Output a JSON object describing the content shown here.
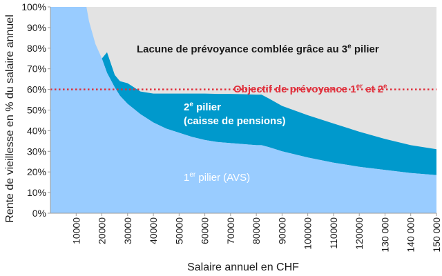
{
  "chart_data": {
    "type": "area",
    "xlabel": "Salaire annuel en CHF",
    "ylabel": "Rente de vieillesse en % du salaire annuel",
    "xlim": [
      0,
      150000
    ],
    "ylim": [
      0,
      100
    ],
    "x_ticks": [
      {
        "value": 10000,
        "label": "10000"
      },
      {
        "value": 20000,
        "label": "20000"
      },
      {
        "value": 30000,
        "label": "30000"
      },
      {
        "value": 40000,
        "label": "40000"
      },
      {
        "value": 50000,
        "label": "50000"
      },
      {
        "value": 60000,
        "label": "60000"
      },
      {
        "value": 70000,
        "label": "70000"
      },
      {
        "value": 80000,
        "label": "80000"
      },
      {
        "value": 90000,
        "label": "90000"
      },
      {
        "value": 100000,
        "label": "100000"
      },
      {
        "value": 110000,
        "label": "110000"
      },
      {
        "value": 120000,
        "label": "120000"
      },
      {
        "value": 130000,
        "label": "130 000"
      },
      {
        "value": 140000,
        "label": "140 000"
      },
      {
        "value": 150000,
        "label": "150 000"
      }
    ],
    "y_ticks": [
      {
        "value": 0,
        "label": "0%"
      },
      {
        "value": 10,
        "label": "10%"
      },
      {
        "value": 20,
        "label": "20%"
      },
      {
        "value": 30,
        "label": "30%"
      },
      {
        "value": 40,
        "label": "40%"
      },
      {
        "value": 50,
        "label": "50%"
      },
      {
        "value": 60,
        "label": "60%"
      },
      {
        "value": 70,
        "label": "70%"
      },
      {
        "value": 80,
        "label": "80%"
      },
      {
        "value": 90,
        "label": "90%"
      },
      {
        "value": 100,
        "label": "100%"
      }
    ],
    "x": [
      0,
      2,
      14000,
      15000,
      17500,
      20000,
      22000,
      25000,
      27000,
      30000,
      35000,
      40000,
      45000,
      50000,
      55000,
      60000,
      65000,
      70000,
      75000,
      80000,
      82000,
      85000,
      90000,
      100000,
      110000,
      120000,
      130000,
      140000,
      150000
    ],
    "series": [
      {
        "name": "",
        "label_base": "1",
        "label_sup": "er",
        "label_rest": " pilier (AVS)",
        "color": "#99ccff",
        "values": [
          72,
          100,
          100,
          93,
          82,
          75,
          68,
          61,
          57,
          53,
          48,
          44,
          41,
          39,
          37,
          35.5,
          34.5,
          34,
          33.5,
          33,
          33,
          32,
          30,
          27,
          24.5,
          22.5,
          21,
          19.5,
          18.5
        ]
      },
      {
        "name": "",
        "label_line1_base": "2",
        "label_line1_sup": "e",
        "label_line1_rest": " pilier",
        "label_line2": "(caisse de pensions)",
        "color": "#0099cc",
        "values": [
          0,
          0,
          0,
          0,
          0,
          0,
          10,
          6,
          7,
          10,
          11,
          14,
          17,
          19,
          21,
          22.5,
          23.3,
          23.8,
          24.2,
          24.5,
          24.5,
          23.5,
          22,
          20.5,
          19,
          17,
          15,
          13.5,
          12.5
        ]
      }
    ],
    "gap_area": {
      "label_base": "Lacune de prévoyance comblée grâce au 3",
      "label_sup": "e",
      "label_rest": " pilier",
      "color": "#e3e3e3"
    },
    "target_line": {
      "value": 60,
      "label_base": "Objectif de prévoyance 1",
      "label_sup1": "er",
      "label_mid": " et 2",
      "label_sup2": "e",
      "color": "#e0303c"
    },
    "grid": false,
    "legend": "none"
  }
}
